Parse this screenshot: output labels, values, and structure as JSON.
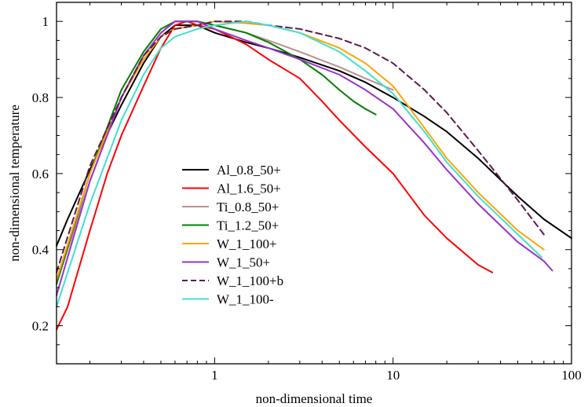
{
  "chart_data": {
    "type": "line",
    "xscale": "log",
    "xlim": [
      0.13,
      100
    ],
    "ylim": [
      0.1,
      1.05
    ],
    "xlabel": "non-dimensional time",
    "ylabel": "non-dimensional temperature",
    "xticks": [
      {
        "value": 1,
        "label": "1"
      },
      {
        "value": 10,
        "label": "10"
      },
      {
        "value": 100,
        "label": "100"
      }
    ],
    "yticks": [
      {
        "value": 0.2,
        "label": "0.2"
      },
      {
        "value": 0.4,
        "label": "0.4"
      },
      {
        "value": 0.6,
        "label": "0.6"
      },
      {
        "value": 0.8,
        "label": "0.8"
      },
      {
        "value": 1,
        "label": "1"
      }
    ],
    "grid": false,
    "legend_position": "center-left",
    "series": [
      {
        "name": "Al_0.8_50+",
        "color": "#000000",
        "dash": false,
        "points": [
          [
            0.13,
            0.41
          ],
          [
            0.15,
            0.48
          ],
          [
            0.2,
            0.61
          ],
          [
            0.3,
            0.78
          ],
          [
            0.4,
            0.89
          ],
          [
            0.5,
            0.96
          ],
          [
            0.6,
            0.99
          ],
          [
            0.8,
            0.99
          ],
          [
            1,
            0.97
          ],
          [
            1.5,
            0.945
          ],
          [
            2,
            0.93
          ],
          [
            3,
            0.905
          ],
          [
            5,
            0.87
          ],
          [
            7,
            0.84
          ],
          [
            10,
            0.8
          ],
          [
            15,
            0.75
          ],
          [
            20,
            0.71
          ],
          [
            30,
            0.64
          ],
          [
            50,
            0.54
          ],
          [
            70,
            0.48
          ],
          [
            100,
            0.43
          ]
        ]
      },
      {
        "name": "Al_1.6_50+",
        "color": "#ff0000",
        "dash": false,
        "points": [
          [
            0.13,
            0.19
          ],
          [
            0.15,
            0.25
          ],
          [
            0.2,
            0.45
          ],
          [
            0.25,
            0.6
          ],
          [
            0.3,
            0.7
          ],
          [
            0.4,
            0.83
          ],
          [
            0.5,
            0.93
          ],
          [
            0.6,
            0.99
          ],
          [
            0.7,
            1.0
          ],
          [
            0.8,
            0.99
          ],
          [
            1,
            0.98
          ],
          [
            1.5,
            0.94
          ],
          [
            2,
            0.9
          ],
          [
            3,
            0.85
          ],
          [
            4,
            0.79
          ],
          [
            5,
            0.74
          ],
          [
            7,
            0.67
          ],
          [
            10,
            0.6
          ],
          [
            15,
            0.49
          ],
          [
            20,
            0.43
          ],
          [
            30,
            0.36
          ],
          [
            36,
            0.34
          ]
        ]
      },
      {
        "name": "Ti_0.8_50+",
        "color": "#bc8f8f",
        "dash": false,
        "points": [
          [
            0.13,
            0.31
          ],
          [
            0.2,
            0.58
          ],
          [
            0.3,
            0.8
          ],
          [
            0.4,
            0.91
          ],
          [
            0.5,
            0.97
          ],
          [
            0.6,
            1.0
          ],
          [
            0.8,
            1.0
          ],
          [
            1,
            0.99
          ],
          [
            1.5,
            0.97
          ],
          [
            2,
            0.95
          ],
          [
            3,
            0.92
          ],
          [
            5,
            0.88
          ],
          [
            7,
            0.85
          ],
          [
            10,
            0.82
          ]
        ]
      },
      {
        "name": "Ti_1.2_50+",
        "color": "#008000",
        "dash": false,
        "points": [
          [
            0.13,
            0.31
          ],
          [
            0.2,
            0.6
          ],
          [
            0.3,
            0.82
          ],
          [
            0.4,
            0.92
          ],
          [
            0.5,
            0.98
          ],
          [
            0.6,
            1.0
          ],
          [
            0.8,
            1.0
          ],
          [
            1,
            0.99
          ],
          [
            1.5,
            0.97
          ],
          [
            2,
            0.945
          ],
          [
            3,
            0.9
          ],
          [
            4,
            0.86
          ],
          [
            5,
            0.82
          ],
          [
            6,
            0.79
          ],
          [
            7,
            0.77
          ],
          [
            8,
            0.755
          ]
        ]
      },
      {
        "name": "W_1_100+",
        "color": "#ffa500",
        "dash": false,
        "points": [
          [
            0.13,
            0.32
          ],
          [
            0.2,
            0.6
          ],
          [
            0.3,
            0.8
          ],
          [
            0.4,
            0.9
          ],
          [
            0.5,
            0.96
          ],
          [
            0.6,
            0.98
          ],
          [
            0.8,
            0.99
          ],
          [
            1,
            1.0
          ],
          [
            1.5,
            0.995
          ],
          [
            2,
            0.99
          ],
          [
            3,
            0.97
          ],
          [
            5,
            0.93
          ],
          [
            7,
            0.89
          ],
          [
            10,
            0.83
          ],
          [
            15,
            0.72
          ],
          [
            20,
            0.64
          ],
          [
            30,
            0.55
          ],
          [
            50,
            0.45
          ],
          [
            70,
            0.4
          ]
        ]
      },
      {
        "name": "W_1_50+",
        "color": "#9932cc",
        "dash": false,
        "points": [
          [
            0.13,
            0.28
          ],
          [
            0.2,
            0.58
          ],
          [
            0.3,
            0.8
          ],
          [
            0.4,
            0.91
          ],
          [
            0.5,
            0.97
          ],
          [
            0.6,
            1.0
          ],
          [
            0.8,
            1.0
          ],
          [
            1,
            0.98
          ],
          [
            1.5,
            0.95
          ],
          [
            2,
            0.93
          ],
          [
            3,
            0.9
          ],
          [
            5,
            0.86
          ],
          [
            7,
            0.82
          ],
          [
            10,
            0.77
          ],
          [
            15,
            0.68
          ],
          [
            20,
            0.61
          ],
          [
            30,
            0.52
          ],
          [
            50,
            0.42
          ],
          [
            70,
            0.37
          ],
          [
            78,
            0.345
          ]
        ]
      },
      {
        "name": "W_1_100+b",
        "color": "#5e1a4e",
        "dash": true,
        "points": [
          [
            0.13,
            0.34
          ],
          [
            0.2,
            0.62
          ],
          [
            0.3,
            0.8
          ],
          [
            0.4,
            0.91
          ],
          [
            0.5,
            0.96
          ],
          [
            0.6,
            0.98
          ],
          [
            0.8,
            0.99
          ],
          [
            1,
            1.0
          ],
          [
            1.5,
            1.0
          ],
          [
            2,
            0.99
          ],
          [
            3,
            0.98
          ],
          [
            5,
            0.955
          ],
          [
            7,
            0.93
          ],
          [
            10,
            0.89
          ],
          [
            15,
            0.82
          ],
          [
            20,
            0.76
          ],
          [
            30,
            0.66
          ],
          [
            50,
            0.53
          ],
          [
            70,
            0.44
          ]
        ]
      },
      {
        "name": "W_1_100-",
        "color": "#40e0d0",
        "dash": false,
        "points": [
          [
            0.13,
            0.25
          ],
          [
            0.2,
            0.52
          ],
          [
            0.3,
            0.74
          ],
          [
            0.4,
            0.86
          ],
          [
            0.5,
            0.93
          ],
          [
            0.6,
            0.96
          ],
          [
            0.8,
            0.98
          ],
          [
            1,
            0.99
          ],
          [
            1.5,
            1.0
          ],
          [
            2,
            0.99
          ],
          [
            3,
            0.97
          ],
          [
            5,
            0.92
          ],
          [
            7,
            0.87
          ],
          [
            10,
            0.81
          ],
          [
            15,
            0.71
          ],
          [
            20,
            0.63
          ],
          [
            30,
            0.54
          ],
          [
            50,
            0.44
          ],
          [
            68,
            0.38
          ]
        ]
      }
    ]
  }
}
